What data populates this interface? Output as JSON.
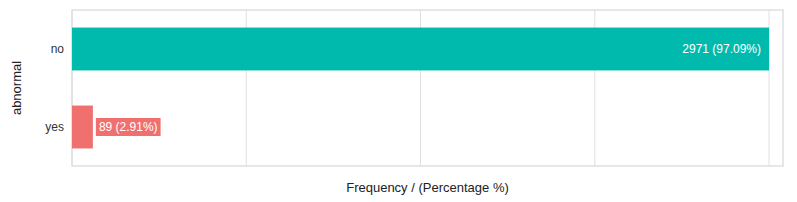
{
  "chart_data": {
    "type": "bar",
    "orientation": "horizontal",
    "categories": [
      "yes",
      "no"
    ],
    "values": [
      89,
      2971
    ],
    "value_labels": [
      "89 (2.91%)",
      "2971 (97.09%)"
    ],
    "colors": [
      "#F07070",
      "#00BBAD"
    ],
    "xlabel": "Frequency / (Percentage %)",
    "ylabel": "abnormal",
    "xlim": [
      0,
      3030.42
    ],
    "xticks": [
      0,
      742.75,
      1485.5,
      2228.25,
      2971
    ],
    "grid": true,
    "data_labels": true,
    "tick_labels": "y"
  }
}
